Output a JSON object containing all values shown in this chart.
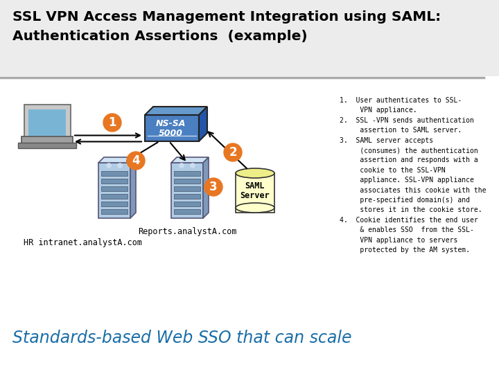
{
  "title_line1": "SSL VPN Access Management Integration using SAML:",
  "title_line2": "Authentication Assertions  (example)",
  "subtitle": "Standards-based Web SSO that can scale",
  "bg_color": "#ffffff",
  "circle_color": "#E87722",
  "saml_cylinder_color": "#FFFFCC",
  "saml_cylinder_edge": "#333333",
  "ns_box_color": "#4A7FC1",
  "label_reports": "Reports.analystA.com",
  "label_hr": "HR intranet.analystA.com",
  "step1": "User authenticates to SSL-\nVPN appliance.",
  "step2": "SSL -VPN sends authentication\nassertion to SAML server.",
  "step3": "SAML server accepts\n(consumes) the authentication\nassertion and responds with a\ncookie to the SSL-VPN\nappliance. SSL-VPN appliance\nassociates this cookie with the\npre-specified domain(s) and\nstores it in the cookie store.",
  "step4": "Cookie identifies the end user\n& enables SSO  from the SSL-\nVPN appliance to servers\nprotected by the AM system."
}
